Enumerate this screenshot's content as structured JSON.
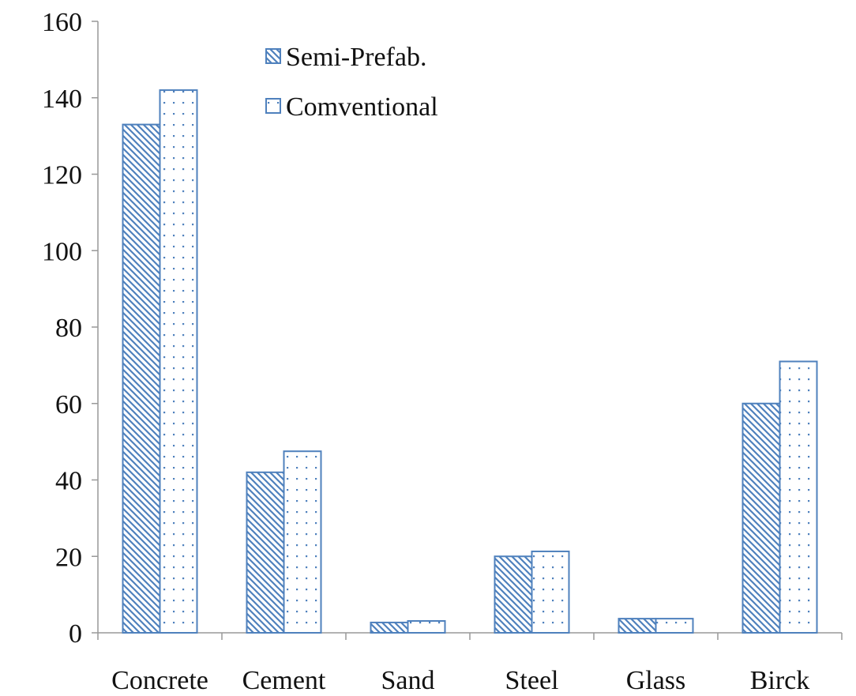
{
  "chart_data": {
    "type": "bar",
    "categories": [
      "Concrete",
      "Cement",
      "Sand",
      "Steel",
      "Glass",
      "Birck"
    ],
    "series": [
      {
        "name": "Semi-Prefab.",
        "color": "#4f81bd",
        "pattern": "hatch",
        "values": [
          133,
          42,
          2.7,
          20,
          3.7,
          60
        ]
      },
      {
        "name": "Comventional",
        "color": "#4f81bd",
        "pattern": "dots",
        "values": [
          142,
          47.5,
          3.1,
          21.3,
          3.7,
          71
        ]
      }
    ],
    "ylim": [
      0,
      160
    ],
    "yticks": [
      0,
      20,
      40,
      60,
      80,
      100,
      120,
      140,
      160
    ],
    "grid": false,
    "legend": "top-left"
  }
}
